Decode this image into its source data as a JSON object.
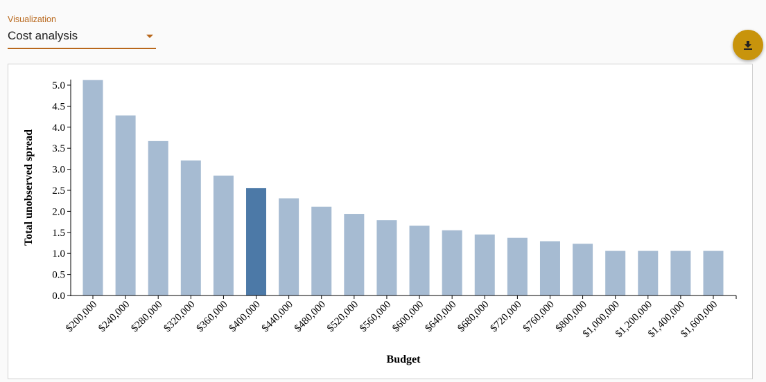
{
  "select": {
    "label": "Visualization",
    "value": "Cost analysis"
  },
  "download_button": {
    "icon": "download-icon"
  },
  "colors": {
    "accent": "#b8671b",
    "fab": "#c8940c",
    "bar": "#a6bbd2",
    "bar_highlight": "#4c79a7"
  },
  "chart_data": {
    "type": "bar",
    "xlabel": "Budget",
    "ylabel": "Total unobserved spread",
    "ylim": [
      0,
      5.0
    ],
    "yticks": [
      "0.0",
      "0.5",
      "1.0",
      "1.5",
      "2.0",
      "2.5",
      "3.0",
      "3.5",
      "4.0",
      "4.5",
      "5.0"
    ],
    "categories": [
      "$200,000",
      "$240,000",
      "$280,000",
      "$320,000",
      "$360,000",
      "$400,000",
      "$440,000",
      "$480,000",
      "$520,000",
      "$560,000",
      "$600,000",
      "$640,000",
      "$680,000",
      "$720,000",
      "$760,000",
      "$800,000",
      "$1,000,000",
      "$1,200,000",
      "$1,400,000",
      "$1,600,000"
    ],
    "values": [
      5.12,
      4.28,
      3.67,
      3.21,
      2.85,
      2.55,
      2.31,
      2.11,
      1.94,
      1.79,
      1.66,
      1.55,
      1.45,
      1.37,
      1.29,
      1.23,
      1.06,
      1.06,
      1.06,
      1.06
    ],
    "highlight_index": 5,
    "grid": false,
    "legend": "none"
  }
}
